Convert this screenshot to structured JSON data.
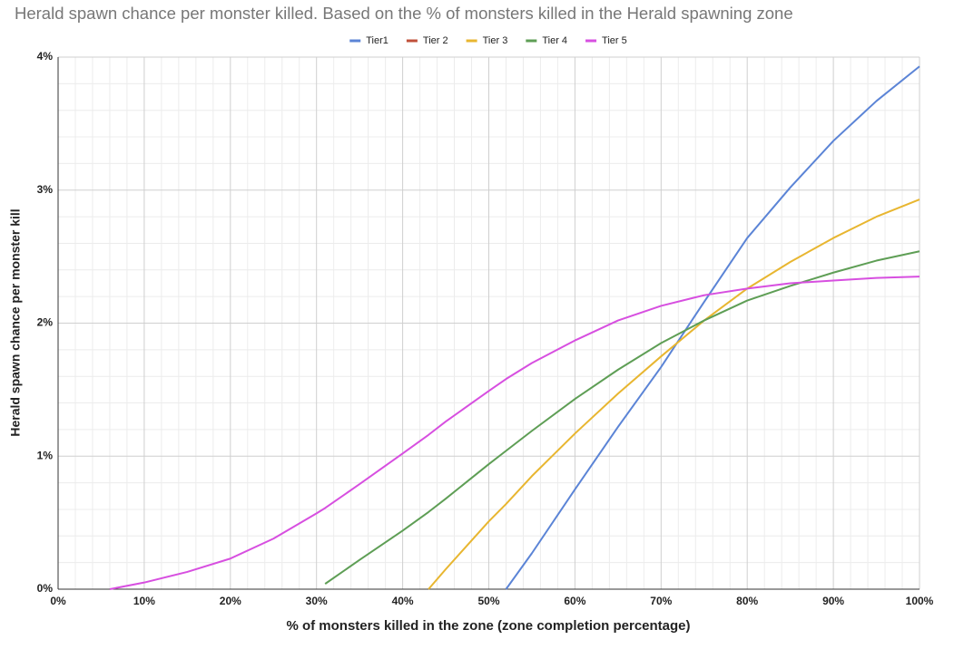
{
  "chart_data": {
    "type": "line",
    "title": "Herald spawn chance per monster killed. Based on the % of monsters killed in the Herald spawning zone",
    "x_label": "% of monsters killed in the zone (zone completion percentage)",
    "y_label": "Herald spawn chance per monster kill",
    "x": [
      6,
      10,
      15,
      20,
      25,
      30,
      31,
      35,
      40,
      43,
      45,
      50,
      52,
      55,
      60,
      65,
      70,
      75,
      80,
      85,
      90,
      95,
      100
    ],
    "series": [
      {
        "name": "Tier1",
        "color": "#5b84d6",
        "values": [
          null,
          null,
          null,
          null,
          null,
          null,
          null,
          null,
          null,
          null,
          null,
          null,
          0,
          0.27,
          0.75,
          1.22,
          1.67,
          2.16,
          2.64,
          3.02,
          3.37,
          3.67,
          3.93
        ]
      },
      {
        "name": "Tier 2",
        "color": "#c0503a",
        "values": [
          null,
          null,
          null,
          null,
          null,
          null,
          null,
          null,
          null,
          null,
          null,
          null,
          null,
          null,
          null,
          null,
          null,
          null,
          null,
          null,
          null,
          null,
          null
        ]
      },
      {
        "name": "Tier 3",
        "color": "#e8b630",
        "values": [
          null,
          null,
          null,
          null,
          null,
          null,
          null,
          null,
          null,
          0,
          0.15,
          0.51,
          0.64,
          0.85,
          1.17,
          1.47,
          1.75,
          2.02,
          2.26,
          2.46,
          2.64,
          2.8,
          2.93
        ]
      },
      {
        "name": "Tier 4",
        "color": "#5e9e55",
        "values": [
          null,
          null,
          null,
          null,
          null,
          null,
          0.04,
          0.22,
          0.44,
          0.58,
          0.68,
          0.94,
          1.04,
          1.19,
          1.43,
          1.65,
          1.85,
          2.02,
          2.17,
          2.28,
          2.38,
          2.47,
          2.54
        ]
      },
      {
        "name": "Tier 5",
        "color": "#d74fe0",
        "values": [
          0,
          0.05,
          0.13,
          0.23,
          0.38,
          0.57,
          0.61,
          0.79,
          1.02,
          1.16,
          1.26,
          1.49,
          1.58,
          1.7,
          1.87,
          2.02,
          2.13,
          2.21,
          2.26,
          2.3,
          2.32,
          2.34,
          2.35
        ]
      }
    ],
    "xlim": [
      0,
      100
    ],
    "xticks": [
      {
        "value": 0,
        "label": "0%"
      },
      {
        "value": 10,
        "label": "10%"
      },
      {
        "value": 20,
        "label": "20%"
      },
      {
        "value": 30,
        "label": "30%"
      },
      {
        "value": 40,
        "label": "40%"
      },
      {
        "value": 50,
        "label": "50%"
      },
      {
        "value": 60,
        "label": "60%"
      },
      {
        "value": 70,
        "label": "70%"
      },
      {
        "value": 80,
        "label": "80%"
      },
      {
        "value": 90,
        "label": "90%"
      },
      {
        "value": 100,
        "label": "100%"
      }
    ],
    "ylim": [
      0,
      4
    ],
    "yticks": [
      {
        "value": 0,
        "label": "0%"
      },
      {
        "value": 1,
        "label": "1%"
      },
      {
        "value": 2,
        "label": "2%"
      },
      {
        "value": 3,
        "label": "3%"
      },
      {
        "value": 4,
        "label": "4%"
      }
    ],
    "grid": true,
    "minor_grid": true,
    "legend_position": "top"
  }
}
